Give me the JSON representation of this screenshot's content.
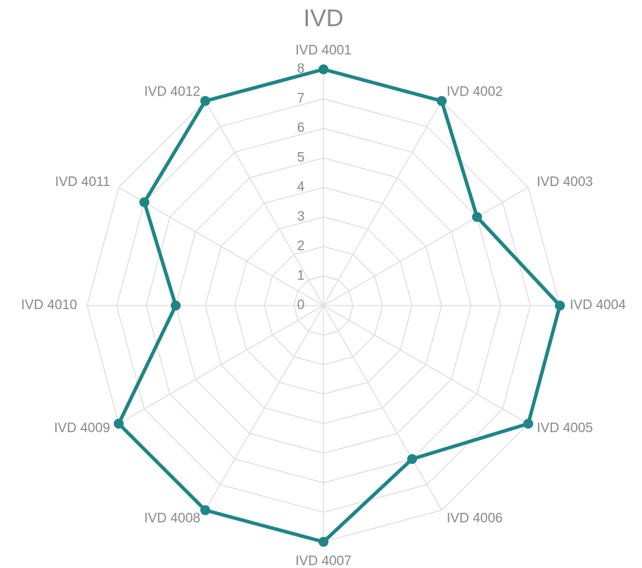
{
  "chart_data": {
    "type": "radar",
    "title": "IVD",
    "categories": [
      "IVD 4001",
      "IVD 4002",
      "IVD 4003",
      "IVD 4004",
      "IVD 4005",
      "IVD 4006",
      "IVD 4007",
      "IVD 4008",
      "IVD 4009",
      "IVD 4010",
      "IVD 4011",
      "IVD 4012"
    ],
    "series": [
      {
        "name": "IVD",
        "color": "#1f8585",
        "values": [
          8,
          8,
          6,
          8,
          8,
          6,
          8,
          8,
          8,
          5,
          7,
          8
        ]
      }
    ],
    "ylim": [
      0,
      8
    ],
    "yticks": [
      0,
      1,
      2,
      3,
      4,
      5,
      6,
      7,
      8
    ],
    "grid": true
  }
}
